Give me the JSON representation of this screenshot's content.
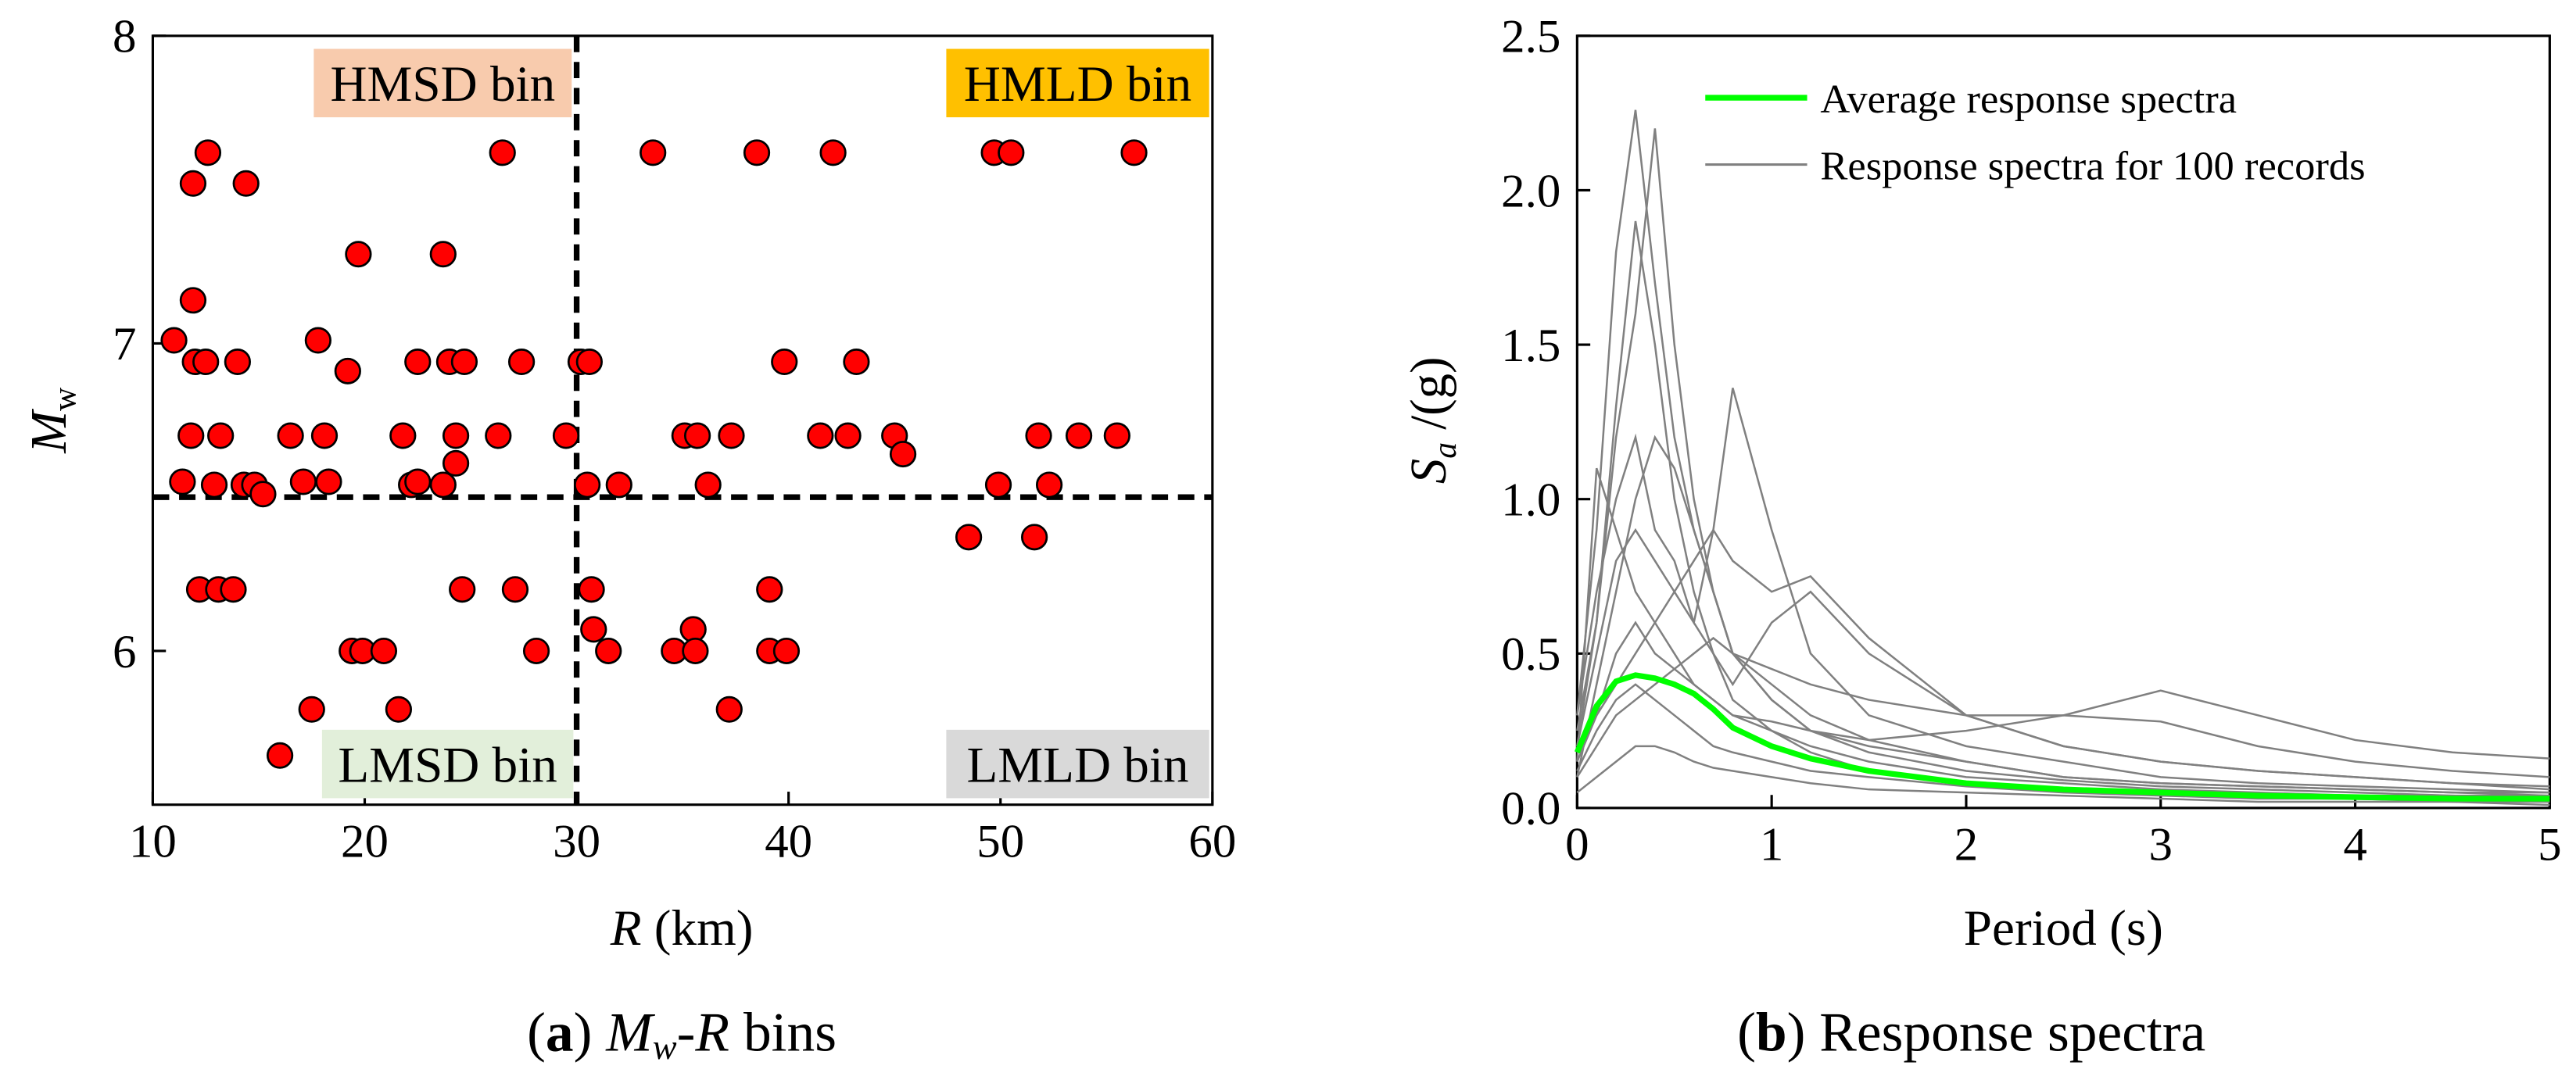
{
  "chart_data": [
    {
      "type": "scatter",
      "xlabel": [
        "R",
        " (km)"
      ],
      "ylabel": [
        "M",
        "w"
      ],
      "caption": [
        "(",
        "a",
        ") ",
        "M",
        "w",
        "-",
        "R",
        " bins"
      ],
      "xlim": [
        10,
        60
      ],
      "ylim": [
        5.5,
        8
      ],
      "xticks": [
        10,
        20,
        30,
        40,
        50,
        60
      ],
      "yticks": [
        6,
        7,
        8
      ],
      "color": "#ff0000",
      "dividers": {
        "x": 30,
        "y": 6.5
      },
      "annotations": [
        {
          "text": "HMSD bin",
          "color": "#f8cbad"
        },
        {
          "text": "HMLD bin",
          "color": "#ffc000"
        },
        {
          "text": "LMSD bin",
          "color": "#e2efda"
        },
        {
          "text": "LMLD bin",
          "color": "#d9d9d9"
        }
      ],
      "x": [
        11.0,
        11.9,
        11.9,
        11.8,
        11.4,
        12.0,
        12.5,
        12.6,
        12.2,
        13.1,
        13.8,
        12.9,
        13.2,
        14.0,
        14.4,
        14.3,
        14.8,
        15.2,
        16.0,
        16.5,
        17.1,
        17.5,
        17.8,
        18.1,
        18.3,
        19.2,
        19.4,
        19.7,
        19.9,
        20.9,
        21.6,
        21.8,
        22.2,
        22.5,
        22.5,
        23.7,
        23.7,
        24.0,
        24.3,
        24.3,
        24.7,
        24.6,
        26.3,
        26.5,
        27.1,
        27.4,
        28.1,
        29.5,
        30.2,
        30.6,
        30.5,
        30.7,
        30.8,
        31.5,
        32.0,
        33.6,
        38.5,
        42.1,
        49.7,
        50.5,
        56.3,
        39.8,
        43.2,
        35.1,
        35.7,
        37.3,
        41.5,
        42.8,
        45.0,
        51.8,
        53.7,
        55.5,
        36.2,
        45.4,
        49.9,
        52.3,
        48.5,
        51.6,
        39.1,
        35.5,
        34.6,
        35.6,
        39.1,
        39.9,
        37.2
      ],
      "y": [
        7.01,
        7.52,
        7.14,
        6.7,
        6.55,
        6.94,
        6.94,
        7.62,
        6.2,
        6.2,
        6.2,
        6.54,
        6.7,
        6.94,
        7.52,
        6.54,
        6.54,
        6.51,
        5.66,
        6.7,
        6.55,
        5.81,
        7.01,
        6.7,
        6.55,
        6.91,
        6.0,
        7.29,
        6.0,
        6.0,
        5.81,
        6.7,
        6.54,
        6.55,
        6.94,
        7.29,
        6.54,
        6.94,
        6.61,
        6.7,
        6.94,
        6.2,
        6.7,
        7.62,
        6.2,
        6.94,
        6.0,
        6.7,
        6.94,
        6.94,
        6.54,
        6.2,
        6.07,
        6.0,
        6.54,
        7.62,
        7.62,
        7.62,
        7.62,
        7.62,
        7.62,
        6.94,
        6.94,
        6.7,
        6.7,
        6.7,
        6.7,
        6.7,
        6.7,
        6.7,
        6.7,
        6.7,
        6.54,
        6.64,
        6.54,
        6.54,
        6.37,
        6.37,
        6.2,
        6.07,
        6.0,
        6.0,
        6.0,
        6.0,
        5.81
      ]
    },
    {
      "type": "line",
      "xlabel": "Period (s)",
      "ylabel": [
        "S",
        "a",
        " /(g)"
      ],
      "caption": [
        "(",
        "b",
        ") Response spectra"
      ],
      "xlim": [
        0,
        5
      ],
      "ylim": [
        0,
        2.5
      ],
      "xticks": [
        0,
        1,
        2,
        3,
        4,
        5
      ],
      "yticks": [
        {
          "value": 0,
          "label": "0.0"
        },
        0.5,
        {
          "value": 1,
          "label": "1.0"
        },
        1.5,
        {
          "value": 2,
          "label": "2.0"
        },
        2.5
      ],
      "legend": "upper right",
      "x": [
        0,
        0.1,
        0.2,
        0.3,
        0.4,
        0.5,
        0.6,
        0.7,
        0.8,
        1.0,
        1.2,
        1.5,
        2.0,
        2.5,
        3.0,
        3.5,
        4.0,
        4.5,
        5.0
      ],
      "series": [
        {
          "name": "Average response spectra",
          "color": "#00ff00",
          "values": [
            0.18,
            0.33,
            0.41,
            0.43,
            0.42,
            0.4,
            0.37,
            0.32,
            0.26,
            0.2,
            0.16,
            0.12,
            0.08,
            0.06,
            0.05,
            0.04,
            0.035,
            0.03,
            0.03
          ]
        },
        {
          "name": "Response spectra for 100 records",
          "color": "#808080",
          "records": [
            [
              0.3,
              0.9,
              1.8,
              2.26,
              1.7,
              1.2,
              0.9,
              0.7,
              0.5,
              0.35,
              0.25,
              0.18,
              0.12,
              0.09,
              0.07,
              0.06,
              0.05,
              0.04,
              0.04
            ],
            [
              0.25,
              0.6,
              1.2,
              1.6,
              2.2,
              1.5,
              1.0,
              0.7,
              0.5,
              0.35,
              0.25,
              0.2,
              0.15,
              0.1,
              0.08,
              0.07,
              0.06,
              0.05,
              0.05
            ],
            [
              0.2,
              0.5,
              0.8,
              0.9,
              0.8,
              0.7,
              0.6,
              0.9,
              1.36,
              0.9,
              0.5,
              0.3,
              0.2,
              0.15,
              0.1,
              0.08,
              0.07,
              0.06,
              0.05
            ],
            [
              0.15,
              1.1,
              0.9,
              0.7,
              0.6,
              0.5,
              0.4,
              0.35,
              0.3,
              0.25,
              0.2,
              0.15,
              0.1,
              0.08,
              0.06,
              0.05,
              0.04,
              0.04,
              0.03
            ],
            [
              0.2,
              0.3,
              0.4,
              0.5,
              0.6,
              0.7,
              0.8,
              0.9,
              0.8,
              0.7,
              0.75,
              0.55,
              0.3,
              0.2,
              0.15,
              0.12,
              0.1,
              0.08,
              0.07
            ],
            [
              0.1,
              0.2,
              0.3,
              0.35,
              0.4,
              0.45,
              0.5,
              0.55,
              0.5,
              0.45,
              0.4,
              0.35,
              0.3,
              0.3,
              0.38,
              0.3,
              0.22,
              0.18,
              0.16
            ],
            [
              0.15,
              0.3,
              0.5,
              0.6,
              0.5,
              0.45,
              0.4,
              0.35,
              0.3,
              0.28,
              0.25,
              0.22,
              0.25,
              0.3,
              0.28,
              0.2,
              0.15,
              0.12,
              0.1
            ],
            [
              0.12,
              0.25,
              0.35,
              0.4,
              0.35,
              0.3,
              0.25,
              0.2,
              0.18,
              0.15,
              0.12,
              0.1,
              0.07,
              0.05,
              0.04,
              0.03,
              0.03,
              0.02,
              0.02
            ],
            [
              0.2,
              0.6,
              1.3,
              1.9,
              1.5,
              1.0,
              0.7,
              0.5,
              0.35,
              0.25,
              0.18,
              0.12,
              0.08,
              0.06,
              0.05,
              0.04,
              0.03,
              0.03,
              0.02
            ],
            [
              0.1,
              0.4,
              0.7,
              1.0,
              1.2,
              1.1,
              0.9,
              0.7,
              0.5,
              0.4,
              0.3,
              0.22,
              0.15,
              0.1,
              0.08,
              0.07,
              0.06,
              0.05,
              0.04
            ],
            [
              0.05,
              0.1,
              0.15,
              0.2,
              0.2,
              0.18,
              0.15,
              0.13,
              0.12,
              0.1,
              0.08,
              0.06,
              0.05,
              0.04,
              0.03,
              0.02,
              0.02,
              0.02,
              0.01
            ],
            [
              0.3,
              0.7,
              1.0,
              1.2,
              0.9,
              0.8,
              0.6,
              0.5,
              0.4,
              0.6,
              0.7,
              0.5,
              0.3,
              0.2,
              0.15,
              0.12,
              0.1,
              0.08,
              0.06
            ]
          ]
        }
      ]
    }
  ]
}
